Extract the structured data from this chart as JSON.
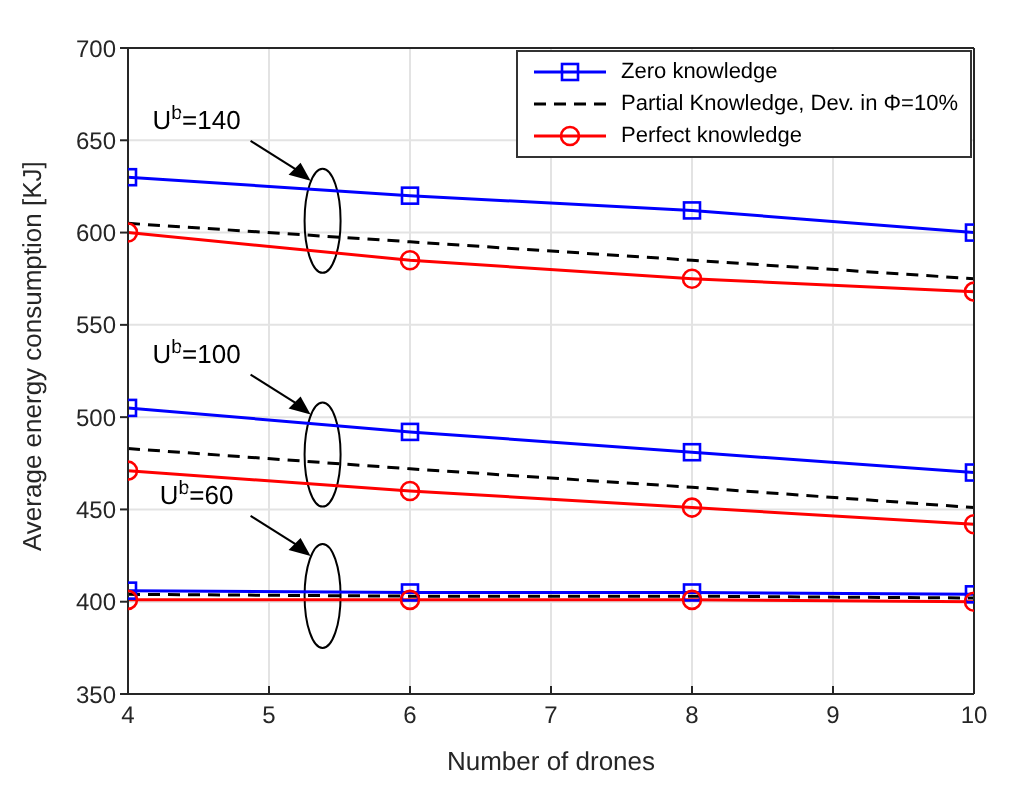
{
  "chart_data": {
    "type": "line",
    "xlabel": "Number of drones",
    "ylabel": "Average energy consumption [KJ]",
    "x": [
      4,
      6,
      8,
      10
    ],
    "series": [
      {
        "name": "Zero knowledge",
        "color": "#0000ff",
        "marker": "square",
        "line_style": "solid",
        "values": [
          630,
          620,
          612,
          600
        ]
      },
      {
        "name": "Partial Knowledge, Dev. in Φ=10%",
        "color": "#000000",
        "marker": "none",
        "line_style": "dashed",
        "values": [
          605,
          595,
          585,
          575
        ]
      },
      {
        "name": "Perfect knowledge",
        "color": "#ff0000",
        "marker": "circle",
        "line_style": "solid",
        "values": [
          600,
          585,
          575,
          568
        ]
      },
      {
        "color": "#0000ff",
        "marker": "square",
        "line_style": "solid",
        "values": [
          505,
          492,
          481,
          470
        ]
      },
      {
        "color": "#000000",
        "marker": "none",
        "line_style": "dashed",
        "values": [
          483,
          472,
          462,
          451
        ]
      },
      {
        "color": "#ff0000",
        "marker": "circle",
        "line_style": "solid",
        "values": [
          471,
          460,
          451,
          442
        ]
      },
      {
        "color": "#0000ff",
        "marker": "square",
        "line_style": "solid",
        "values": [
          406,
          405,
          405,
          404
        ]
      },
      {
        "color": "#000000",
        "marker": "none",
        "line_style": "dashed",
        "values": [
          404,
          403,
          403,
          402
        ]
      },
      {
        "color": "#ff0000",
        "marker": "circle",
        "line_style": "solid",
        "values": [
          401,
          401,
          401,
          400
        ]
      }
    ],
    "xlim": [
      4,
      10
    ],
    "xticks": [
      4,
      5,
      6,
      7,
      8,
      9,
      10
    ],
    "ylim": [
      350,
      700
    ],
    "yticks": [
      350,
      400,
      450,
      500,
      550,
      600,
      650,
      700
    ],
    "grid": true,
    "legend": "top right",
    "annotations": [
      "U$^{b}$=140",
      "U$^{b}$=100",
      "U$^{b}$=60"
    ]
  }
}
